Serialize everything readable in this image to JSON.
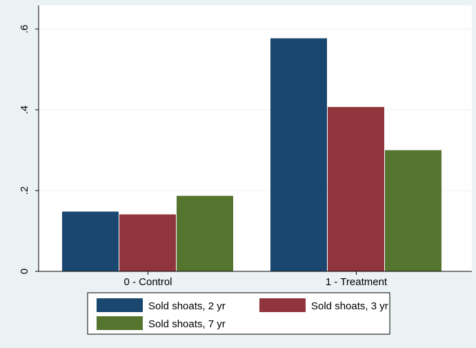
{
  "colors": {
    "outer_background": "#eaf2f3",
    "plot_background": "#ffffff",
    "grid": "#eaf2f3",
    "series": [
      "#1a476f",
      "#90353b",
      "#55752f"
    ]
  },
  "chart_data": {
    "type": "bar",
    "title": "",
    "xlabel": "",
    "ylabel": "",
    "categories": [
      "0 - Control",
      "1 - Treatment"
    ],
    "series": [
      {
        "name": "Sold shoats, 2 yr",
        "values": [
          0.148,
          0.577
        ]
      },
      {
        "name": "Sold shoats, 3 yr",
        "values": [
          0.141,
          0.407
        ]
      },
      {
        "name": "Sold shoats, 7 yr",
        "values": [
          0.187,
          0.3
        ]
      }
    ],
    "ylim": [
      0,
      0.6
    ],
    "yticks": [
      0,
      0.2,
      0.4,
      0.6
    ],
    "ytick_labels": [
      "0",
      ".2",
      ".4",
      ".6"
    ],
    "grid": true,
    "legend_position": "bottom"
  }
}
